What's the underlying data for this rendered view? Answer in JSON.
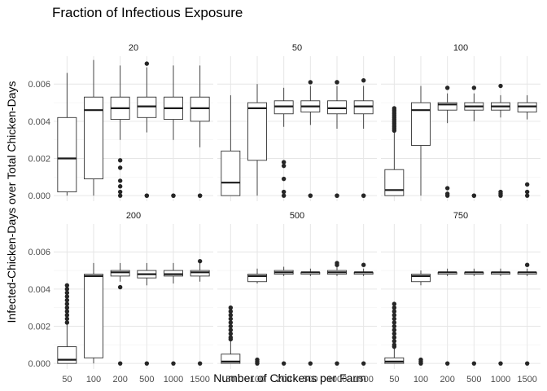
{
  "chart_data": {
    "type": "boxplot",
    "title": "Fraction of Infectious Exposure",
    "xlabel": "Number of Chickens per Farm",
    "ylabel": "Infected-Chicken-Days over Total Chicken-Days",
    "categories": [
      "50",
      "100",
      "200",
      "500",
      "1000",
      "1500"
    ],
    "y_ticks": [
      "0.000",
      "0.002",
      "0.004",
      "0.006"
    ],
    "y_tick_values": [
      0,
      0.002,
      0.004,
      0.006
    ],
    "ylim": [
      -0.0003,
      0.0075
    ],
    "grid": true,
    "facet_layout": "2 rows x 3 columns",
    "panels": [
      {
        "label": "20",
        "boxes": [
          {
            "category": "50",
            "whisker_low": 0.0,
            "q1": 0.0002,
            "median": 0.002,
            "q3": 0.0042,
            "whisker_high": 0.0066,
            "outliers": []
          },
          {
            "category": "100",
            "whisker_low": 0.0,
            "q1": 0.0009,
            "median": 0.0046,
            "q3": 0.0053,
            "whisker_high": 0.0073,
            "outliers": []
          },
          {
            "category": "200",
            "whisker_low": 0.003,
            "q1": 0.0041,
            "median": 0.0047,
            "q3": 0.0053,
            "whisker_high": 0.007,
            "outliers": [
              0.0019,
              0.0015,
              0.0008,
              0.0005,
              0.0002,
              0.0
            ]
          },
          {
            "category": "500",
            "whisker_low": 0.0034,
            "q1": 0.0042,
            "median": 0.0048,
            "q3": 0.0053,
            "whisker_high": 0.0069,
            "outliers": [
              0.0071,
              0.0,
              0.0
            ]
          },
          {
            "category": "1000",
            "whisker_low": 0.003,
            "q1": 0.0041,
            "median": 0.0047,
            "q3": 0.0053,
            "whisker_high": 0.007,
            "outliers": [
              0.0,
              0.0
            ]
          },
          {
            "category": "1500",
            "whisker_low": 0.0026,
            "q1": 0.004,
            "median": 0.0047,
            "q3": 0.0053,
            "whisker_high": 0.007,
            "outliers": [
              0.0,
              0.0
            ]
          }
        ]
      },
      {
        "label": "50",
        "boxes": [
          {
            "category": "50",
            "whisker_low": 0.0,
            "q1": 0.0,
            "median": 0.0007,
            "q3": 0.0024,
            "whisker_high": 0.0054,
            "outliers": []
          },
          {
            "category": "100",
            "whisker_low": 0.0,
            "q1": 0.0019,
            "median": 0.0047,
            "q3": 0.005,
            "whisker_high": 0.006,
            "outliers": []
          },
          {
            "category": "200",
            "whisker_low": 0.0037,
            "q1": 0.0044,
            "median": 0.0048,
            "q3": 0.0051,
            "whisker_high": 0.0058,
            "outliers": [
              0.0018,
              0.0016,
              0.0009,
              0.0002,
              0.0
            ]
          },
          {
            "category": "500",
            "whisker_low": 0.0038,
            "q1": 0.0045,
            "median": 0.0048,
            "q3": 0.0051,
            "whisker_high": 0.0059,
            "outliers": [
              0.0061,
              0.0,
              0.0
            ]
          },
          {
            "category": "1000",
            "whisker_low": 0.0036,
            "q1": 0.0044,
            "median": 0.0047,
            "q3": 0.0051,
            "whisker_high": 0.0059,
            "outliers": [
              0.0061,
              0.0061,
              0.0,
              0.0
            ]
          },
          {
            "category": "1500",
            "whisker_low": 0.0036,
            "q1": 0.0044,
            "median": 0.0048,
            "q3": 0.0051,
            "whisker_high": 0.0059,
            "outliers": [
              0.0062,
              0.0,
              0.0
            ]
          }
        ]
      },
      {
        "label": "100",
        "boxes": [
          {
            "category": "50",
            "whisker_low": 0.0,
            "q1": 0.0,
            "median": 0.0003,
            "q3": 0.0014,
            "whisker_high": 0.0034,
            "outliers": [
              0.0035,
              0.0036,
              0.0037,
              0.0038,
              0.0039,
              0.004,
              0.0041,
              0.0042,
              0.0043,
              0.0044,
              0.0045,
              0.0046,
              0.0047
            ]
          },
          {
            "category": "100",
            "whisker_low": 0.0,
            "q1": 0.0027,
            "median": 0.0046,
            "q3": 0.005,
            "whisker_high": 0.0059,
            "outliers": []
          },
          {
            "category": "200",
            "whisker_low": 0.0039,
            "q1": 0.0046,
            "median": 0.0049,
            "q3": 0.005,
            "whisker_high": 0.0055,
            "outliers": [
              0.0058,
              0.0004,
              0.0001,
              0.0
            ]
          },
          {
            "category": "500",
            "whisker_low": 0.004,
            "q1": 0.0046,
            "median": 0.0048,
            "q3": 0.005,
            "whisker_high": 0.0055,
            "outliers": [
              0.0058,
              0.0,
              0.0
            ]
          },
          {
            "category": "1000",
            "whisker_low": 0.0042,
            "q1": 0.0046,
            "median": 0.0048,
            "q3": 0.005,
            "whisker_high": 0.0054,
            "outliers": [
              0.0059,
              0.0002,
              0.0001,
              0.0
            ]
          },
          {
            "category": "1500",
            "whisker_low": 0.0041,
            "q1": 0.0045,
            "median": 0.0048,
            "q3": 0.005,
            "whisker_high": 0.0054,
            "outliers": [
              0.0006,
              0.0002,
              0.0
            ]
          }
        ]
      },
      {
        "label": "200",
        "boxes": [
          {
            "category": "50",
            "whisker_low": 0.0,
            "q1": 0.0,
            "median": 0.0002,
            "q3": 0.0009,
            "whisker_high": 0.0021,
            "outliers": [
              0.0022,
              0.0024,
              0.0026,
              0.0028,
              0.003,
              0.0032,
              0.0034,
              0.0036,
              0.0038,
              0.004,
              0.0042
            ]
          },
          {
            "category": "100",
            "whisker_low": 0.0,
            "q1": 0.0003,
            "median": 0.0047,
            "q3": 0.0048,
            "whisker_high": 0.0054,
            "outliers": []
          },
          {
            "category": "200",
            "whisker_low": 0.0044,
            "q1": 0.0047,
            "median": 0.0049,
            "q3": 0.005,
            "whisker_high": 0.0054,
            "outliers": [
              0.0041,
              0.0
            ]
          },
          {
            "category": "500",
            "whisker_low": 0.0042,
            "q1": 0.0046,
            "median": 0.0048,
            "q3": 0.005,
            "whisker_high": 0.0054,
            "outliers": [
              0.0
            ]
          },
          {
            "category": "1000",
            "whisker_low": 0.0043,
            "q1": 0.0047,
            "median": 0.0048,
            "q3": 0.005,
            "whisker_high": 0.0054,
            "outliers": [
              0.0
            ]
          },
          {
            "category": "1500",
            "whisker_low": 0.0044,
            "q1": 0.0047,
            "median": 0.0049,
            "q3": 0.005,
            "whisker_high": 0.0054,
            "outliers": [
              0.0055,
              0.0
            ]
          }
        ]
      },
      {
        "label": "500",
        "boxes": [
          {
            "category": "50",
            "whisker_low": 0.0,
            "q1": 0.0,
            "median": 0.0001,
            "q3": 0.0005,
            "whisker_high": 0.0012,
            "outliers": [
              0.0013,
              0.0014,
              0.0016,
              0.0018,
              0.002,
              0.0022,
              0.0024,
              0.0026,
              0.0028,
              0.003
            ]
          },
          {
            "category": "100",
            "whisker_low": 0.0043,
            "q1": 0.0044,
            "median": 0.0047,
            "q3": 0.0048,
            "whisker_high": 0.0051,
            "outliers": [
              0.0002,
              0.0001,
              0.0
            ]
          },
          {
            "category": "200",
            "whisker_low": 0.0047,
            "q1": 0.0048,
            "median": 0.0049,
            "q3": 0.005,
            "whisker_high": 0.0052,
            "outliers": [
              0.0
            ]
          },
          {
            "category": "500",
            "whisker_low": 0.0047,
            "q1": 0.0048,
            "median": 0.0049,
            "q3": 0.0049,
            "whisker_high": 0.0051,
            "outliers": [
              0.0
            ]
          },
          {
            "category": "1000",
            "whisker_low": 0.0047,
            "q1": 0.0048,
            "median": 0.0049,
            "q3": 0.005,
            "whisker_high": 0.0052,
            "outliers": [
              0.0054,
              0.0053,
              0.0
            ]
          },
          {
            "category": "1500",
            "whisker_low": 0.0047,
            "q1": 0.0048,
            "median": 0.0049,
            "q3": 0.0049,
            "whisker_high": 0.0051,
            "outliers": [
              0.0053,
              0.0
            ]
          }
        ]
      },
      {
        "label": "750",
        "boxes": [
          {
            "category": "50",
            "whisker_low": 0.0,
            "q1": 0.0,
            "median": 0.0001,
            "q3": 0.0003,
            "whisker_high": 0.0008,
            "outliers": [
              0.0009,
              0.001,
              0.0012,
              0.0014,
              0.0016,
              0.0018,
              0.002,
              0.0022,
              0.0024,
              0.0026,
              0.0028,
              0.003,
              0.0032
            ]
          },
          {
            "category": "100",
            "whisker_low": 0.0042,
            "q1": 0.0044,
            "median": 0.0047,
            "q3": 0.0048,
            "whisker_high": 0.005,
            "outliers": [
              0.0002,
              0.0001,
              0.0
            ]
          },
          {
            "category": "200",
            "whisker_low": 0.0047,
            "q1": 0.0048,
            "median": 0.0049,
            "q3": 0.0049,
            "whisker_high": 0.0051,
            "outliers": [
              0.0
            ]
          },
          {
            "category": "500",
            "whisker_low": 0.0047,
            "q1": 0.0048,
            "median": 0.0049,
            "q3": 0.0049,
            "whisker_high": 0.0051,
            "outliers": [
              0.0
            ]
          },
          {
            "category": "1000",
            "whisker_low": 0.0047,
            "q1": 0.0048,
            "median": 0.0049,
            "q3": 0.0049,
            "whisker_high": 0.0051,
            "outliers": [
              0.0
            ]
          },
          {
            "category": "1500",
            "whisker_low": 0.0047,
            "q1": 0.0048,
            "median": 0.0049,
            "q3": 0.0049,
            "whisker_high": 0.0051,
            "outliers": [
              0.0053,
              0.0
            ]
          }
        ]
      }
    ]
  }
}
